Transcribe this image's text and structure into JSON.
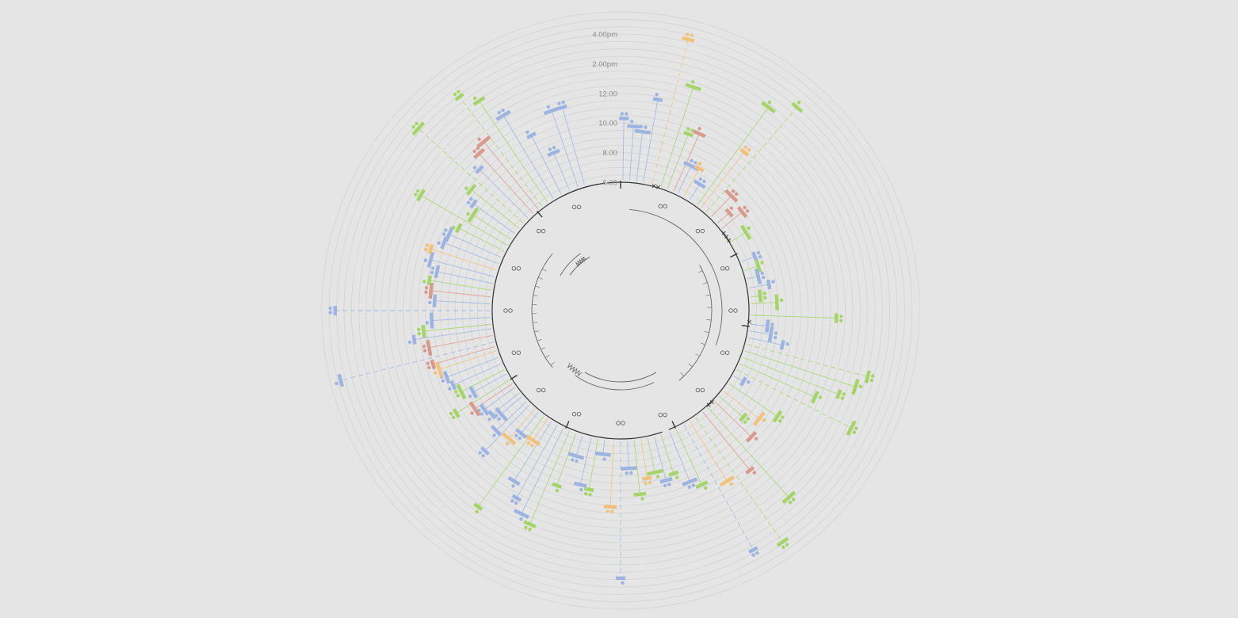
{
  "chart_data": {
    "type": "radial-timeline",
    "radial_axis": {
      "tick_labels": [
        "6.00",
        "8.00",
        "10.00",
        "12.00",
        "2.00pm",
        "4.00pm"
      ],
      "tick_hours": [
        6,
        8,
        10,
        12,
        14,
        16
      ],
      "range_hours": [
        6,
        17.5
      ],
      "grid": true
    },
    "colors": {
      "blue": "#9eb4e0",
      "green": "#a6d46b",
      "orange": "#f0c27e",
      "red": "#d99a8e",
      "grid": "#d4d4d4",
      "ring": "#333333"
    },
    "center": {
      "circle_markers": [
        "○○"
      ],
      "cross_markers": [
        "×"
      ]
    },
    "events": [
      {
        "angle": 1,
        "hour": 10.3,
        "color": "blue"
      },
      {
        "angle": 4,
        "hour": 9.8,
        "color": "blue"
      },
      {
        "angle": 7,
        "hour": 9.5,
        "color": "blue"
      },
      {
        "angle": 10,
        "hour": 11.8,
        "color": "blue"
      },
      {
        "angle": 14,
        "hour": 16.2,
        "color": "orange"
      },
      {
        "angle": 18,
        "hour": 13.2,
        "color": "green"
      },
      {
        "angle": 21,
        "hour": 10.1,
        "color": "green"
      },
      {
        "angle": 24,
        "hour": 10.4,
        "color": "red"
      },
      {
        "angle": 26,
        "hour": 8.2,
        "color": "blue"
      },
      {
        "angle": 29,
        "hour": 8.3,
        "color": "orange"
      },
      {
        "angle": 32,
        "hour": 7.4,
        "color": "blue"
      },
      {
        "angle": 36,
        "hour": 14.3,
        "color": "green"
      },
      {
        "angle": 38,
        "hour": 10.9,
        "color": "orange"
      },
      {
        "angle": 41,
        "hour": 15.5,
        "color": "green"
      },
      {
        "angle": 44,
        "hour": 8.1,
        "color": "red"
      },
      {
        "angle": 48,
        "hour": 7.2,
        "color": "red"
      },
      {
        "angle": 51,
        "hour": 7.9,
        "color": "red"
      },
      {
        "angle": 58,
        "hour": 7.3,
        "color": "green"
      },
      {
        "angle": 68,
        "hour": 7.1,
        "color": "blue"
      },
      {
        "angle": 72,
        "hour": 7.1,
        "color": "green"
      },
      {
        "angle": 76,
        "hour": 6.9,
        "color": "blue"
      },
      {
        "angle": 80,
        "hour": 7.5,
        "color": "blue"
      },
      {
        "angle": 84,
        "hour": 6.8,
        "color": "green"
      },
      {
        "angle": 87,
        "hour": 7.9,
        "color": "green"
      },
      {
        "angle": 92,
        "hour": 11.9,
        "color": "green"
      },
      {
        "angle": 96,
        "hour": 7.3,
        "color": "blue"
      },
      {
        "angle": 99,
        "hour": 7.6,
        "color": "blue"
      },
      {
        "angle": 102,
        "hour": 8.5,
        "color": "blue"
      },
      {
        "angle": 105,
        "hour": 14.6,
        "color": "green"
      },
      {
        "angle": 108,
        "hour": 14.0,
        "color": "green"
      },
      {
        "angle": 111,
        "hour": 13.1,
        "color": "green"
      },
      {
        "angle": 114,
        "hour": 11.7,
        "color": "green"
      },
      {
        "angle": 117,
        "hour": 14.8,
        "color": "green"
      },
      {
        "angle": 120,
        "hour": 6.9,
        "color": "blue"
      },
      {
        "angle": 124,
        "hour": 10.1,
        "color": "green"
      },
      {
        "angle": 128,
        "hour": 9.2,
        "color": "orange"
      },
      {
        "angle": 131,
        "hour": 8.3,
        "color": "green"
      },
      {
        "angle": 134,
        "hour": 9.6,
        "color": "red"
      },
      {
        "angle": 138,
        "hour": 14.3,
        "color": "green"
      },
      {
        "angle": 141,
        "hour": 11.2,
        "color": "red"
      },
      {
        "angle": 145,
        "hour": 16.4,
        "color": "green"
      },
      {
        "angle": 148,
        "hour": 10.9,
        "color": "orange"
      },
      {
        "angle": 151,
        "hour": 15.8,
        "color": "blue"
      },
      {
        "angle": 155,
        "hour": 10.3,
        "color": "green"
      },
      {
        "angle": 158,
        "hour": 9.8,
        "color": "blue"
      },
      {
        "angle": 162,
        "hour": 8.9,
        "color": "green"
      },
      {
        "angle": 165,
        "hour": 9.2,
        "color": "blue"
      },
      {
        "angle": 168,
        "hour": 8.5,
        "color": "green"
      },
      {
        "angle": 171,
        "hour": 8.8,
        "color": "orange"
      },
      {
        "angle": 174,
        "hour": 9.8,
        "color": "green"
      },
      {
        "angle": 177,
        "hour": 8.0,
        "color": "blue"
      },
      {
        "angle": 180,
        "hour": 15.4,
        "color": "blue"
      },
      {
        "angle": 183,
        "hour": 10.6,
        "color": "orange"
      },
      {
        "angle": 187,
        "hour": 7.1,
        "color": "blue"
      },
      {
        "angle": 190,
        "hour": 9.6,
        "color": "green"
      },
      {
        "angle": 193,
        "hour": 9.4,
        "color": "blue"
      },
      {
        "angle": 197,
        "hour": 7.6,
        "color": "blue"
      },
      {
        "angle": 200,
        "hour": 9.9,
        "color": "green"
      },
      {
        "angle": 203,
        "hour": 13.0,
        "color": "green"
      },
      {
        "angle": 206,
        "hour": 12.6,
        "color": "blue"
      },
      {
        "angle": 209,
        "hour": 11.8,
        "color": "blue"
      },
      {
        "angle": 212,
        "hour": 10.9,
        "color": "blue"
      },
      {
        "angle": 214,
        "hour": 7.9,
        "color": "orange"
      },
      {
        "angle": 216,
        "hour": 13.7,
        "color": "green"
      },
      {
        "angle": 219,
        "hour": 8.0,
        "color": "blue"
      },
      {
        "angle": 221,
        "hour": 8.8,
        "color": "orange"
      },
      {
        "angle": 224,
        "hour": 10.5,
        "color": "blue"
      },
      {
        "angle": 226,
        "hour": 9.0,
        "color": "blue"
      },
      {
        "angle": 229,
        "hour": 8.0,
        "color": "blue"
      },
      {
        "angle": 231,
        "hour": 8.5,
        "color": "blue"
      },
      {
        "angle": 234,
        "hour": 8.7,
        "color": "blue"
      },
      {
        "angle": 236,
        "hour": 9.2,
        "color": "red"
      },
      {
        "angle": 238,
        "hour": 10.4,
        "color": "green"
      },
      {
        "angle": 241,
        "hour": 8.7,
        "color": "blue"
      },
      {
        "angle": 243,
        "hour": 9.4,
        "color": "green"
      },
      {
        "angle": 246,
        "hour": 9.7,
        "color": "blue"
      },
      {
        "angle": 249,
        "hour": 9.9,
        "color": "blue"
      },
      {
        "angle": 252,
        "hour": 10.2,
        "color": "orange"
      },
      {
        "angle": 254,
        "hour": 10.5,
        "color": "red"
      },
      {
        "angle": 256,
        "hour": 16.8,
        "color": "blue"
      },
      {
        "angle": 259,
        "hour": 10.5,
        "color": "red"
      },
      {
        "angle": 262,
        "hour": 11.4,
        "color": "blue"
      },
      {
        "angle": 264,
        "hour": 10.7,
        "color": "green"
      },
      {
        "angle": 267,
        "hour": 10.1,
        "color": "blue"
      },
      {
        "angle": 270,
        "hour": 16.6,
        "color": "blue"
      },
      {
        "angle": 273,
        "hour": 9.9,
        "color": "blue"
      },
      {
        "angle": 276,
        "hour": 10.2,
        "color": "red"
      },
      {
        "angle": 279,
        "hour": 10.4,
        "color": "green"
      },
      {
        "angle": 282,
        "hour": 10.0,
        "color": "blue"
      },
      {
        "angle": 285,
        "hour": 10.6,
        "color": "blue"
      },
      {
        "angle": 288,
        "hour": 10.8,
        "color": "orange"
      },
      {
        "angle": 291,
        "hour": 10.1,
        "color": "blue"
      },
      {
        "angle": 294,
        "hour": 10.0,
        "color": "blue"
      },
      {
        "angle": 297,
        "hour": 9.6,
        "color": "green"
      },
      {
        "angle": 300,
        "hour": 12.9,
        "color": "green"
      },
      {
        "angle": 303,
        "hour": 9.2,
        "color": "green"
      },
      {
        "angle": 306,
        "hour": 9.6,
        "color": "blue"
      },
      {
        "angle": 309,
        "hour": 10.3,
        "color": "green"
      },
      {
        "angle": 312,
        "hour": 15.7,
        "color": "green"
      },
      {
        "angle": 315,
        "hour": 10.8,
        "color": "blue"
      },
      {
        "angle": 318,
        "hour": 11.6,
        "color": "red"
      },
      {
        "angle": 321,
        "hour": 12.0,
        "color": "red"
      },
      {
        "angle": 323,
        "hour": 15.4,
        "color": "green"
      },
      {
        "angle": 326,
        "hour": 14.4,
        "color": "green"
      },
      {
        "angle": 329,
        "hour": 12.7,
        "color": "blue"
      },
      {
        "angle": 333,
        "hour": 10.6,
        "color": "blue"
      },
      {
        "angle": 337,
        "hour": 8.9,
        "color": "blue"
      },
      {
        "angle": 341,
        "hour": 11.6,
        "color": "blue"
      },
      {
        "angle": 344,
        "hour": 11.6,
        "color": "blue"
      }
    ]
  }
}
